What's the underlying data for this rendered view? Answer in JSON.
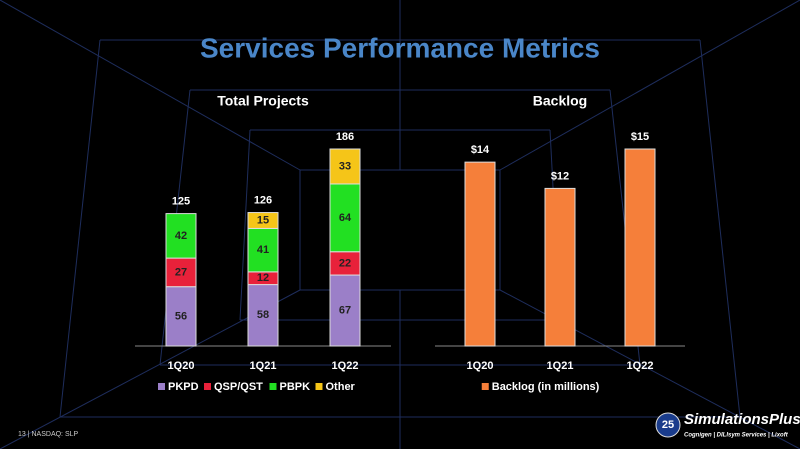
{
  "title": "Services Performance Metrics",
  "footer": "13 | NASDAQ: SLP",
  "logo": {
    "badge": "25",
    "name": "SimulationsPlus",
    "divisions": "Cognigen | DILIsym Services | Lixoft"
  },
  "chart_data": [
    {
      "type": "bar",
      "stacked": true,
      "title": "Total Projects",
      "categories": [
        "1Q20",
        "1Q21",
        "1Q22"
      ],
      "series": [
        {
          "name": "PKPD",
          "color": "#9b7fc8",
          "values": [
            56,
            58,
            67
          ]
        },
        {
          "name": "QSP/QST",
          "color": "#e8213a",
          "values": [
            27,
            12,
            22
          ]
        },
        {
          "name": "PBPK",
          "color": "#22e022",
          "values": [
            42,
            41,
            64
          ]
        },
        {
          "name": "Other",
          "color": "#f5c518",
          "values": [
            null,
            15,
            33
          ]
        }
      ],
      "totals": [
        125,
        126,
        186
      ]
    },
    {
      "type": "bar",
      "stacked": false,
      "title": "Backlog",
      "categories": [
        "1Q20",
        "1Q21",
        "1Q22"
      ],
      "series": [
        {
          "name": "Backlog (in millions)",
          "color": "#f57f3a",
          "values": [
            14,
            12,
            15
          ],
          "value_labels": [
            "$14",
            "$12",
            "$15"
          ]
        }
      ]
    }
  ]
}
